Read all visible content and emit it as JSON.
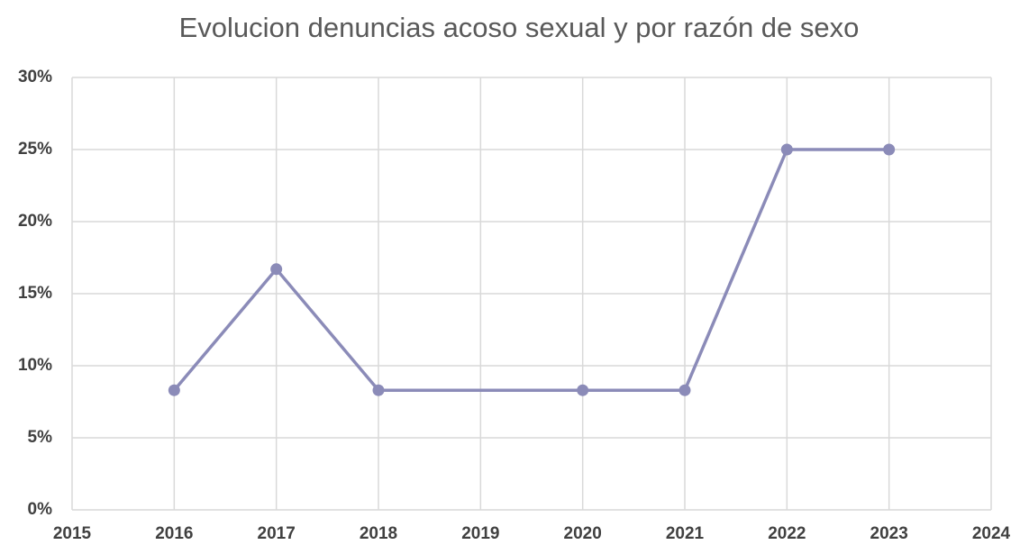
{
  "chart_data": {
    "type": "line",
    "title": "Evolucion denuncias acoso sexual y por razón de sexo",
    "x": [
      2016,
      2017,
      2018,
      2020,
      2021,
      2022,
      2023
    ],
    "values": [
      8.3,
      16.7,
      8.3,
      8.3,
      8.3,
      25,
      25
    ],
    "color": "#8b8bb8",
    "xlim": [
      2015,
      2024
    ],
    "xticks": [
      2015,
      2016,
      2017,
      2018,
      2019,
      2020,
      2021,
      2022,
      2023,
      2024
    ],
    "ylim": [
      0,
      30
    ],
    "yticks": [
      {
        "value": 0,
        "label": "0%"
      },
      {
        "value": 5,
        "label": "5%"
      },
      {
        "value": 10,
        "label": "10%"
      },
      {
        "value": 15,
        "label": "15%"
      },
      {
        "value": 20,
        "label": "20%"
      },
      {
        "value": 25,
        "label": "25%"
      },
      {
        "value": 30,
        "label": "30%"
      }
    ],
    "grid": true
  }
}
